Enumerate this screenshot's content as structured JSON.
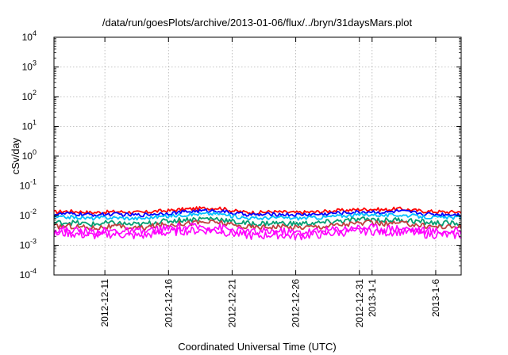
{
  "chart_data": {
    "type": "line",
    "title": "/data/run/goesPlots/archive/2013-01-06/flux/../bryn/31daysMars.plot",
    "xlabel": "Coordinated Universal Time (UTC)",
    "ylabel": "cSv/day",
    "yscale": "log",
    "ylim": [
      0.0001,
      10000
    ],
    "xlim": [
      "2012-12-07",
      "2013-01-08"
    ],
    "grid": true,
    "y_ticks": [
      {
        "base": "10",
        "exp": "-4"
      },
      {
        "base": "10",
        "exp": "-3"
      },
      {
        "base": "10",
        "exp": "-2"
      },
      {
        "base": "10",
        "exp": "-1"
      },
      {
        "base": "10",
        "exp": "0"
      },
      {
        "base": "10",
        "exp": "1"
      },
      {
        "base": "10",
        "exp": "2"
      },
      {
        "base": "10",
        "exp": "3"
      },
      {
        "base": "10",
        "exp": "4"
      }
    ],
    "x_ticks": [
      {
        "date": "2012-12-11",
        "label": "2012-12-11"
      },
      {
        "date": "2012-12-16",
        "label": "2012-12-16"
      },
      {
        "date": "2012-12-21",
        "label": "2012-12-21"
      },
      {
        "date": "2012-12-26",
        "label": "2012-12-26"
      },
      {
        "date": "2012-12-31",
        "label": "2012-12-31"
      },
      {
        "date": "2013-01-01",
        "label": "2013-1-1"
      },
      {
        "date": "2013-01-06",
        "label": "2013-1-6"
      }
    ],
    "x": [
      "2012-12-07",
      "2012-12-08",
      "2012-12-09",
      "2012-12-10",
      "2012-12-11",
      "2012-12-12",
      "2012-12-13",
      "2012-12-14",
      "2012-12-15",
      "2012-12-16",
      "2012-12-17",
      "2012-12-18",
      "2012-12-19",
      "2012-12-20",
      "2012-12-21",
      "2012-12-22",
      "2012-12-23",
      "2012-12-24",
      "2012-12-25",
      "2012-12-26",
      "2012-12-27",
      "2012-12-28",
      "2012-12-29",
      "2012-12-30",
      "2012-12-31",
      "2013-01-01",
      "2013-01-02",
      "2013-01-03",
      "2013-01-04",
      "2013-01-05",
      "2013-01-06",
      "2013-01-07",
      "2013-01-08"
    ],
    "series": [
      {
        "color": "#ff0000",
        "values": [
          0.013,
          0.014,
          0.0135,
          0.0125,
          0.013,
          0.0135,
          0.013,
          0.0125,
          0.014,
          0.0145,
          0.016,
          0.017,
          0.0175,
          0.018,
          0.0145,
          0.013,
          0.0125,
          0.0135,
          0.013,
          0.0125,
          0.013,
          0.0135,
          0.0145,
          0.015,
          0.016,
          0.0165,
          0.0155,
          0.017,
          0.0155,
          0.014,
          0.0135,
          0.013,
          0.0135
        ]
      },
      {
        "color": "#0000ff",
        "values": [
          0.011,
          0.0115,
          0.011,
          0.0105,
          0.011,
          0.011,
          0.0105,
          0.0105,
          0.0115,
          0.012,
          0.013,
          0.014,
          0.0145,
          0.0145,
          0.012,
          0.011,
          0.0105,
          0.011,
          0.011,
          0.0105,
          0.011,
          0.011,
          0.012,
          0.0125,
          0.013,
          0.0135,
          0.0125,
          0.014,
          0.013,
          0.0115,
          0.011,
          0.011,
          0.011
        ]
      },
      {
        "color": "#00bfff",
        "values": [
          0.0085,
          0.009,
          0.0085,
          0.008,
          0.0085,
          0.0085,
          0.008,
          0.008,
          0.009,
          0.0095,
          0.0105,
          0.011,
          0.0115,
          0.0115,
          0.0095,
          0.0085,
          0.008,
          0.0085,
          0.0085,
          0.008,
          0.0085,
          0.0085,
          0.0095,
          0.01,
          0.0105,
          0.011,
          0.01,
          0.0105,
          0.01,
          0.009,
          0.0085,
          0.0085,
          0.0085
        ]
      },
      {
        "color": "#009e73",
        "values": [
          0.0055,
          0.006,
          0.0055,
          0.005,
          0.0055,
          0.0055,
          0.005,
          0.005,
          0.006,
          0.0065,
          0.0072,
          0.0075,
          0.008,
          0.0078,
          0.0062,
          0.0055,
          0.0052,
          0.0056,
          0.0055,
          0.0052,
          0.0055,
          0.0056,
          0.0063,
          0.0068,
          0.0072,
          0.0075,
          0.0068,
          0.0072,
          0.0068,
          0.006,
          0.0056,
          0.0055,
          0.0055
        ]
      },
      {
        "color": "#c04040",
        "values": [
          0.0042,
          0.0045,
          0.0042,
          0.0038,
          0.0042,
          0.0042,
          0.0038,
          0.0038,
          0.0046,
          0.005,
          0.0055,
          0.0058,
          0.006,
          0.0059,
          0.0047,
          0.0042,
          0.004,
          0.0043,
          0.0042,
          0.004,
          0.0042,
          0.0043,
          0.0048,
          0.0052,
          0.0055,
          0.0057,
          0.0052,
          0.0055,
          0.0052,
          0.0046,
          0.0043,
          0.0042,
          0.0042
        ]
      },
      {
        "color": "#ff00ff",
        "values": [
          0.0032,
          0.0034,
          0.0031,
          0.0028,
          0.003,
          0.0031,
          0.0028,
          0.0028,
          0.0033,
          0.0036,
          0.0039,
          0.0041,
          0.0042,
          0.004,
          0.0033,
          0.0029,
          0.0027,
          0.003,
          0.0029,
          0.0027,
          0.0029,
          0.003,
          0.0034,
          0.0037,
          0.0039,
          0.004,
          0.0036,
          0.0038,
          0.0036,
          0.0032,
          0.003,
          0.0029,
          0.0029
        ]
      },
      {
        "color": "#ff00ff",
        "values": [
          0.0024,
          0.0026,
          0.0023,
          0.0021,
          0.0023,
          0.0024,
          0.0021,
          0.0021,
          0.0025,
          0.0027,
          0.003,
          0.0031,
          0.0032,
          0.003,
          0.0025,
          0.0022,
          0.002,
          0.0023,
          0.0022,
          0.002,
          0.0022,
          0.0023,
          0.0026,
          0.0028,
          0.003,
          0.003,
          0.0027,
          0.0029,
          0.0027,
          0.0024,
          0.0023,
          0.0022,
          0.0022
        ]
      }
    ]
  }
}
